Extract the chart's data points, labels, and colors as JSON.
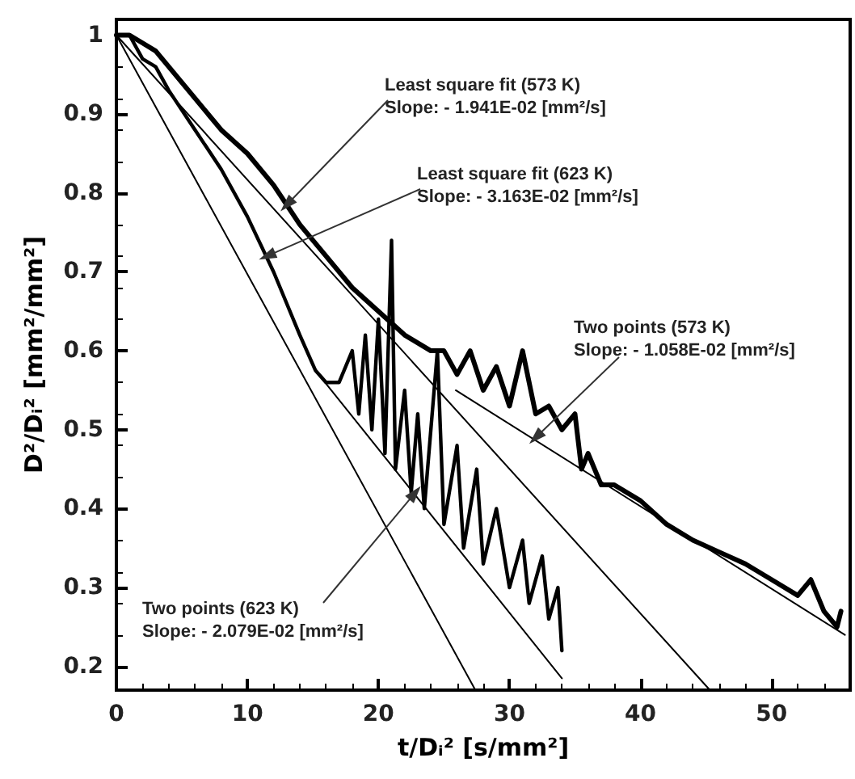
{
  "chart_data": {
    "type": "line",
    "xlabel": "t/Dᵢ² [s/mm²]",
    "ylabel": "D²/Dᵢ² [mm²/mm²]",
    "xlim": [
      0,
      56
    ],
    "ylim": [
      0.17,
      1.02
    ],
    "xticks": [
      0,
      10,
      20,
      30,
      40,
      50
    ],
    "yticks": [
      0.2,
      0.3,
      0.4,
      0.5,
      0.6,
      0.7,
      0.8,
      0.9,
      1
    ],
    "grid": false,
    "series": [
      {
        "color": "#000000",
        "x": [
          0,
          1,
          2,
          3,
          4,
          5,
          6,
          8,
          10,
          12,
          14,
          16,
          18,
          20,
          22,
          24,
          25,
          26,
          27,
          28,
          29,
          30,
          31,
          32,
          33,
          34,
          35,
          35.5,
          36,
          37,
          38,
          40,
          42,
          44,
          46,
          48,
          50,
          52,
          53,
          54,
          55,
          55.3
        ],
        "values": [
          1.0,
          1.0,
          0.99,
          0.98,
          0.96,
          0.94,
          0.92,
          0.88,
          0.85,
          0.81,
          0.76,
          0.72,
          0.68,
          0.65,
          0.62,
          0.6,
          0.6,
          0.57,
          0.6,
          0.55,
          0.58,
          0.53,
          0.6,
          0.52,
          0.53,
          0.5,
          0.52,
          0.45,
          0.47,
          0.43,
          0.43,
          0.41,
          0.38,
          0.36,
          0.345,
          0.33,
          0.31,
          0.29,
          0.31,
          0.27,
          0.25,
          0.27
        ]
      },
      {
        "color": "#000000",
        "x": [
          0,
          1,
          2,
          3,
          4,
          6,
          8,
          10,
          12,
          14,
          15.2,
          16,
          17,
          18,
          18.5,
          19,
          19.5,
          20,
          20.5,
          21,
          21.3,
          22,
          22.5,
          23,
          23.5,
          24.5,
          25,
          26,
          26.5,
          27.5,
          28,
          29,
          30,
          31,
          31.5,
          32.5,
          33,
          33.7,
          34
        ],
        "values": [
          1.0,
          1.0,
          0.97,
          0.96,
          0.93,
          0.88,
          0.83,
          0.77,
          0.7,
          0.62,
          0.575,
          0.56,
          0.56,
          0.6,
          0.52,
          0.62,
          0.5,
          0.64,
          0.47,
          0.74,
          0.45,
          0.55,
          0.42,
          0.52,
          0.4,
          0.6,
          0.38,
          0.48,
          0.35,
          0.45,
          0.33,
          0.4,
          0.3,
          0.36,
          0.28,
          0.34,
          0.26,
          0.3,
          0.22
        ]
      },
      {
        "color": "#000000",
        "x": [
          0,
          45.3
        ],
        "values": [
          1.0,
          0.17
        ]
      },
      {
        "color": "#000000",
        "x": [
          0,
          27.4
        ],
        "values": [
          1.0,
          0.17
        ]
      },
      {
        "color": "#000000",
        "x": [
          25.9,
          55.6
        ],
        "values": [
          0.55,
          0.24
        ]
      },
      {
        "color": "#000000",
        "x": [
          15.2,
          34
        ],
        "values": [
          0.575,
          0.185
        ]
      }
    ],
    "annotations": [
      {
        "text": "Least square fit (573 K)\nSlope: - 1.941E-02 [mm²/s]",
        "x": 13,
        "y": 0.785
      },
      {
        "text": "Least square fit (623 K)\nSlope: - 3.163E-02 [mm²/s]",
        "x": 11.5,
        "y": 0.72
      },
      {
        "text": "Two points (573 K)\nSlope: - 1.058E-02 [mm²/s]",
        "x": 32,
        "y": 0.49
      },
      {
        "text": "Two points (623 K)\nSlope: - 2.079E-02 [mm²/s]",
        "x": 22.8,
        "y": 0.42
      }
    ]
  }
}
